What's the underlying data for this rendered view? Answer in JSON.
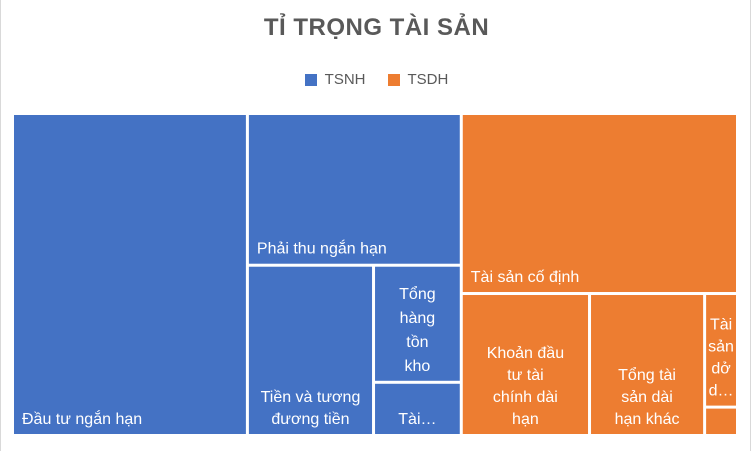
{
  "chart_data": {
    "type": "treemap",
    "title": "TỈ TRỌNG TÀI SẢN",
    "colors": {
      "TSNH": "#4472c4",
      "TSDH": "#ed7d31"
    },
    "series": [
      {
        "name": "TSNH",
        "items": [
          {
            "label": "Đầu tư ngắn hạn",
            "lines": [
              "Đầu tư ngắn hạn"
            ],
            "value": 32.4
          },
          {
            "label": "Phải thu ngắn hạn",
            "lines": [
              "Phải thu ngắn hạn"
            ],
            "value": 13.9
          },
          {
            "label": "Tiền và tương đương tiền",
            "lines": [
              "Tiền và tương",
              "đương tiền"
            ],
            "value": 9.2
          },
          {
            "label": "Tổng hàng tồn kho",
            "lines": [
              "Tổng",
              "hàng",
              "tồn",
              "kho"
            ],
            "value": 4.4
          },
          {
            "label": "Tài…",
            "lines": [
              "Tài…"
            ],
            "value": 2.0
          }
        ]
      },
      {
        "name": "TSDH",
        "items": [
          {
            "label": "Tài sản cố định",
            "lines": [
              "Tài sản cố định"
            ],
            "value": 21.3
          },
          {
            "label": "Khoản đầu tư tài chính dài hạn",
            "lines": [
              "Khoản đầu",
              "tư tài",
              "chính dài",
              "hạn"
            ],
            "value": 7.8
          },
          {
            "label": "Tổng tài sản dài hạn khác",
            "lines": [
              "Tổng tài",
              "sản dài",
              "hạn khác"
            ],
            "value": 7.0
          },
          {
            "label": "Tài sản dở d…",
            "lines": [
              "Tài",
              "sản",
              "dở",
              "d…"
            ],
            "value": 1.6
          },
          {
            "label": "",
            "lines": [],
            "value": 0.4
          }
        ]
      }
    ],
    "legend": [
      "TSNH",
      "TSDH"
    ],
    "legend_position": "top"
  }
}
